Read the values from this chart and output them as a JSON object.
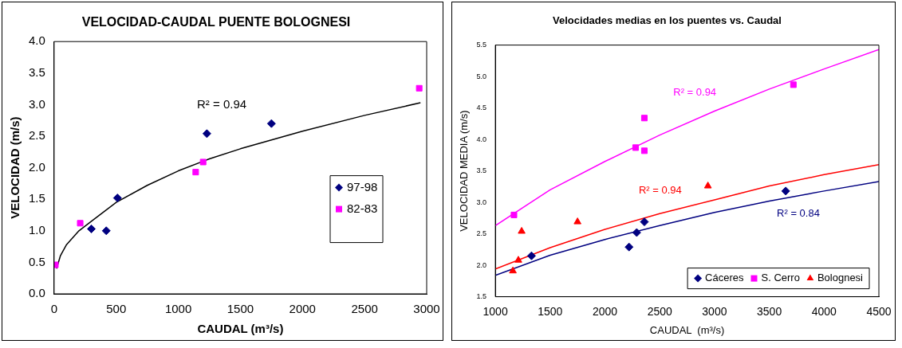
{
  "chart_data": [
    {
      "type": "scatter",
      "title": "VELOCIDAD-CAUDAL PUENTE BOLOGNESI",
      "xlabel": "CAUDAL (m³/s)",
      "ylabel": "VELOCIDAD (m/s)",
      "xlim": [
        0,
        3000
      ],
      "xticks": [
        0,
        500,
        1000,
        1500,
        2000,
        2500,
        3000
      ],
      "ylim": [
        0,
        4
      ],
      "yticks": [
        {
          "value": 0,
          "label": "0.0"
        },
        {
          "value": 0.5,
          "label": "0.5"
        },
        {
          "value": 1,
          "label": "1.0"
        },
        {
          "value": 1.5,
          "label": "1.5"
        },
        {
          "value": 2,
          "label": "2.0"
        },
        {
          "value": 2.5,
          "label": "2.5"
        },
        {
          "value": 3,
          "label": "3.0"
        },
        {
          "value": 3.5,
          "label": "3.5"
        },
        {
          "value": 4,
          "label": "4.0"
        }
      ],
      "grid": false,
      "legend": "right",
      "annotations": [
        "R² = 0.94"
      ],
      "series": [
        {
          "name": "97-98",
          "color": "#000080",
          "marker": "diamond",
          "x": [
            300,
            420,
            510,
            1230,
            1750
          ],
          "values": [
            1.03,
            1.0,
            1.52,
            2.54,
            2.7
          ]
        },
        {
          "name": "82-83",
          "color": "#ff00ff",
          "marker": "square",
          "x": [
            10,
            210,
            1140,
            1200,
            2940
          ],
          "values": [
            0.46,
            1.12,
            1.93,
            2.09,
            3.26
          ]
        },
        {
          "type": "line",
          "color": "#000000",
          "marker": "none",
          "line_style": "solid",
          "x": [
            20,
            50,
            100,
            200,
            300,
            500,
            750,
            1000,
            1250,
            1500,
            2000,
            2500,
            2950
          ],
          "values": [
            0.4,
            0.6,
            0.78,
            1.0,
            1.15,
            1.45,
            1.72,
            1.95,
            2.14,
            2.3,
            2.58,
            2.83,
            3.03
          ]
        }
      ]
    },
    {
      "type": "scatter",
      "title": "Velocidades medias en los puentes vs. Caudal",
      "xlabel": "CAUDAL  (m³/s)",
      "ylabel": "VELOCIDAD MEDIA (m/s)",
      "xlim": [
        1000,
        4500
      ],
      "xticks": [
        1000,
        1500,
        2000,
        2500,
        3000,
        3500,
        4000,
        4500
      ],
      "ylim": [
        1.5,
        5.5
      ],
      "yticks": [
        1.5,
        {
          "value": 2,
          "label": "2.0"
        },
        2.5,
        {
          "value": 3,
          "label": "3.0"
        },
        3.5,
        {
          "value": 4,
          "label": "4.0"
        },
        4.5,
        {
          "value": 5,
          "label": "5.0"
        },
        5.5
      ],
      "grid": false,
      "legend": "bottom right",
      "annotations": [
        "R² = 0.94",
        "R² = 0.94",
        "R² = 0.84"
      ],
      "series": [
        {
          "name": "Cáceres",
          "color": "#000080",
          "marker": "diamond",
          "x": [
            1330,
            2220,
            2290,
            2360,
            3650
          ],
          "values": [
            2.15,
            2.29,
            2.52,
            2.69,
            3.18
          ]
        },
        {
          "name": "S. Cerro",
          "color": "#ff00ff",
          "marker": "square",
          "x": [
            1170,
            2280,
            2360,
            2360,
            3720
          ],
          "values": [
            2.8,
            3.87,
            4.34,
            3.82,
            4.87
          ]
        },
        {
          "name": "Bolognesi",
          "color": "#ff0000",
          "marker": "triangle",
          "x": [
            1160,
            1210,
            1240,
            1750,
            2940
          ],
          "values": [
            1.91,
            2.08,
            2.54,
            2.69,
            3.26
          ]
        },
        {
          "type": "line",
          "color": "#ff00ff",
          "marker": "none",
          "line_style": "solid",
          "x": [
            1000,
            1500,
            2000,
            2500,
            3000,
            3500,
            4000,
            4500
          ],
          "values": [
            2.63,
            3.2,
            3.65,
            4.07,
            4.45,
            4.8,
            5.12,
            5.43
          ]
        },
        {
          "type": "line",
          "color": "#ff0000",
          "marker": "none",
          "line_style": "solid",
          "x": [
            1000,
            1500,
            2000,
            2500,
            3000,
            3500,
            4000,
            4500
          ],
          "values": [
            1.94,
            2.28,
            2.57,
            2.82,
            3.04,
            3.26,
            3.44,
            3.6
          ]
        },
        {
          "type": "line",
          "color": "#000080",
          "marker": "none",
          "line_style": "solid",
          "x": [
            1000,
            1500,
            2000,
            2500,
            3000,
            3500,
            4000,
            4500
          ],
          "values": [
            1.84,
            2.16,
            2.41,
            2.63,
            2.84,
            3.02,
            3.18,
            3.33
          ]
        }
      ]
    }
  ]
}
